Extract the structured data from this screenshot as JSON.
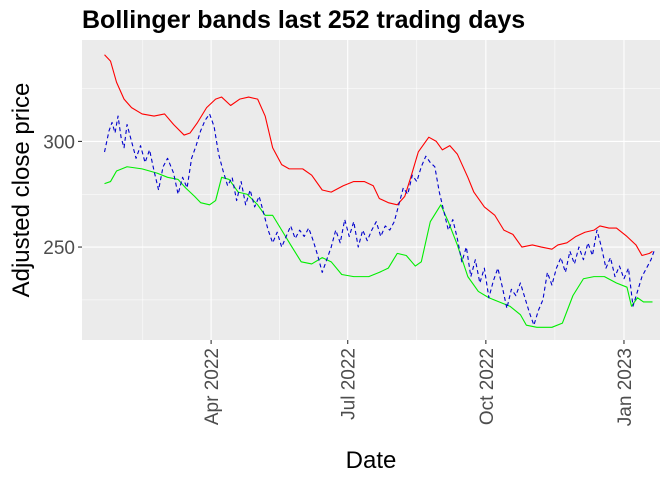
{
  "chart_data": {
    "type": "line",
    "title": "Bollinger bands last 252 trading days",
    "xlabel": "Date",
    "ylabel": "Adjusted close price",
    "x_ticks": [
      {
        "date": "2022-04-01",
        "label": "Apr 2022"
      },
      {
        "date": "2022-07-01",
        "label": "Jul 2022"
      },
      {
        "date": "2022-10-01",
        "label": "Oct 2022"
      },
      {
        "date": "2023-01-01",
        "label": "Jan 2023"
      }
    ],
    "y_ticks": [
      250,
      300
    ],
    "xlim": [
      "2022-01-05",
      "2023-01-25"
    ],
    "ylim": [
      206,
      348
    ],
    "grid": true,
    "background": "#ebebeb",
    "series": [
      {
        "color": "#ff0000",
        "dash": "solid",
        "points": [
          [
            "2022-01-20",
            341
          ],
          [
            "2022-01-24",
            338
          ],
          [
            "2022-01-28",
            328
          ],
          [
            "2022-02-02",
            320
          ],
          [
            "2022-02-07",
            316
          ],
          [
            "2022-02-14",
            313
          ],
          [
            "2022-02-22",
            312
          ],
          [
            "2022-03-01",
            313
          ],
          [
            "2022-03-07",
            308
          ],
          [
            "2022-03-14",
            303
          ],
          [
            "2022-03-18",
            304
          ],
          [
            "2022-03-23",
            309
          ],
          [
            "2022-03-29",
            316
          ],
          [
            "2022-04-04",
            320
          ],
          [
            "2022-04-08",
            321
          ],
          [
            "2022-04-14",
            317
          ],
          [
            "2022-04-20",
            320
          ],
          [
            "2022-04-26",
            321
          ],
          [
            "2022-05-02",
            320
          ],
          [
            "2022-05-07",
            312
          ],
          [
            "2022-05-12",
            297
          ],
          [
            "2022-05-18",
            289
          ],
          [
            "2022-05-23",
            287
          ],
          [
            "2022-06-01",
            287
          ],
          [
            "2022-06-07",
            284
          ],
          [
            "2022-06-14",
            277
          ],
          [
            "2022-06-20",
            276
          ],
          [
            "2022-06-28",
            279
          ],
          [
            "2022-07-05",
            281
          ],
          [
            "2022-07-12",
            281
          ],
          [
            "2022-07-18",
            279
          ],
          [
            "2022-07-22",
            273
          ],
          [
            "2022-07-28",
            271
          ],
          [
            "2022-08-03",
            270
          ],
          [
            "2022-08-08",
            274
          ],
          [
            "2022-08-12",
            283
          ],
          [
            "2022-08-17",
            295
          ],
          [
            "2022-08-24",
            302
          ],
          [
            "2022-08-29",
            300
          ],
          [
            "2022-09-02",
            296
          ],
          [
            "2022-09-07",
            298
          ],
          [
            "2022-09-12",
            294
          ],
          [
            "2022-09-19",
            283
          ],
          [
            "2022-09-23",
            276
          ],
          [
            "2022-09-30",
            269
          ],
          [
            "2022-10-07",
            265
          ],
          [
            "2022-10-13",
            258
          ],
          [
            "2022-10-19",
            256
          ],
          [
            "2022-10-25",
            250
          ],
          [
            "2022-11-01",
            251
          ],
          [
            "2022-11-07",
            250
          ],
          [
            "2022-11-14",
            249
          ],
          [
            "2022-11-18",
            251
          ],
          [
            "2022-11-24",
            252
          ],
          [
            "2022-11-30",
            255
          ],
          [
            "2022-12-06",
            257
          ],
          [
            "2022-12-12",
            258
          ],
          [
            "2022-12-16",
            260
          ],
          [
            "2022-12-22",
            259
          ],
          [
            "2022-12-27",
            259
          ],
          [
            "2023-01-03",
            255
          ],
          [
            "2023-01-09",
            251
          ],
          [
            "2023-01-13",
            246
          ],
          [
            "2023-01-18",
            247
          ],
          [
            "2023-01-20",
            248
          ]
        ]
      },
      {
        "color": "#00ee00",
        "dash": "solid",
        "points": [
          [
            "2022-01-20",
            280
          ],
          [
            "2022-01-24",
            281
          ],
          [
            "2022-01-28",
            286
          ],
          [
            "2022-02-04",
            288
          ],
          [
            "2022-02-14",
            287
          ],
          [
            "2022-02-24",
            285
          ],
          [
            "2022-03-03",
            283
          ],
          [
            "2022-03-10",
            282
          ],
          [
            "2022-03-15",
            278
          ],
          [
            "2022-03-21",
            274
          ],
          [
            "2022-03-25",
            271
          ],
          [
            "2022-03-31",
            270
          ],
          [
            "2022-04-04",
            272
          ],
          [
            "2022-04-08",
            283
          ],
          [
            "2022-04-13",
            282
          ],
          [
            "2022-04-19",
            276
          ],
          [
            "2022-04-25",
            275
          ],
          [
            "2022-05-02",
            270
          ],
          [
            "2022-05-07",
            265
          ],
          [
            "2022-05-12",
            265
          ],
          [
            "2022-05-18",
            258
          ],
          [
            "2022-05-24",
            251
          ],
          [
            "2022-05-31",
            243
          ],
          [
            "2022-06-07",
            242
          ],
          [
            "2022-06-14",
            245
          ],
          [
            "2022-06-20",
            243
          ],
          [
            "2022-06-27",
            237
          ],
          [
            "2022-07-05",
            236
          ],
          [
            "2022-07-15",
            236
          ],
          [
            "2022-07-22",
            238
          ],
          [
            "2022-07-28",
            240
          ],
          [
            "2022-08-03",
            247
          ],
          [
            "2022-08-09",
            246
          ],
          [
            "2022-08-15",
            241
          ],
          [
            "2022-08-19",
            243
          ],
          [
            "2022-08-25",
            262
          ],
          [
            "2022-09-01",
            270
          ],
          [
            "2022-09-06",
            262
          ],
          [
            "2022-09-12",
            251
          ],
          [
            "2022-09-19",
            236
          ],
          [
            "2022-09-26",
            229
          ],
          [
            "2022-10-03",
            226
          ],
          [
            "2022-10-10",
            224
          ],
          [
            "2022-10-17",
            222
          ],
          [
            "2022-10-24",
            218
          ],
          [
            "2022-10-28",
            213
          ],
          [
            "2022-11-04",
            212
          ],
          [
            "2022-11-14",
            212
          ],
          [
            "2022-11-21",
            214
          ],
          [
            "2022-11-28",
            227
          ],
          [
            "2022-12-05",
            235
          ],
          [
            "2022-12-12",
            236
          ],
          [
            "2022-12-19",
            236
          ],
          [
            "2022-12-27",
            233
          ],
          [
            "2023-01-03",
            231
          ],
          [
            "2023-01-06",
            222
          ],
          [
            "2023-01-10",
            226
          ],
          [
            "2023-01-14",
            224
          ],
          [
            "2023-01-20",
            224
          ]
        ]
      },
      {
        "color": "#0000cd",
        "dash": "dashed",
        "points": [
          [
            "2022-01-20",
            295
          ],
          [
            "2022-01-23",
            305
          ],
          [
            "2022-01-25",
            309
          ],
          [
            "2022-01-27",
            304
          ],
          [
            "2022-01-29",
            312
          ],
          [
            "2022-01-31",
            302
          ],
          [
            "2022-02-02",
            297
          ],
          [
            "2022-02-04",
            308
          ],
          [
            "2022-02-07",
            300
          ],
          [
            "2022-02-10",
            292
          ],
          [
            "2022-02-13",
            298
          ],
          [
            "2022-02-16",
            290
          ],
          [
            "2022-02-19",
            296
          ],
          [
            "2022-02-22",
            286
          ],
          [
            "2022-02-25",
            277
          ],
          [
            "2022-02-28",
            288
          ],
          [
            "2022-03-03",
            292
          ],
          [
            "2022-03-07",
            285
          ],
          [
            "2022-03-10",
            275
          ],
          [
            "2022-03-13",
            283
          ],
          [
            "2022-03-16",
            278
          ],
          [
            "2022-03-19",
            292
          ],
          [
            "2022-03-22",
            298
          ],
          [
            "2022-03-25",
            305
          ],
          [
            "2022-03-28",
            310
          ],
          [
            "2022-03-31",
            313
          ],
          [
            "2022-04-03",
            307
          ],
          [
            "2022-04-06",
            294
          ],
          [
            "2022-04-09",
            286
          ],
          [
            "2022-04-12",
            279
          ],
          [
            "2022-04-15",
            283
          ],
          [
            "2022-04-18",
            272
          ],
          [
            "2022-04-21",
            281
          ],
          [
            "2022-04-24",
            270
          ],
          [
            "2022-04-27",
            277
          ],
          [
            "2022-04-30",
            269
          ],
          [
            "2022-05-03",
            274
          ],
          [
            "2022-05-06",
            266
          ],
          [
            "2022-05-09",
            258
          ],
          [
            "2022-05-12",
            252
          ],
          [
            "2022-05-15",
            257
          ],
          [
            "2022-05-18",
            250
          ],
          [
            "2022-05-21",
            255
          ],
          [
            "2022-05-24",
            260
          ],
          [
            "2022-05-27",
            254
          ],
          [
            "2022-05-30",
            258
          ],
          [
            "2022-06-02",
            255
          ],
          [
            "2022-06-05",
            259
          ],
          [
            "2022-06-08",
            253
          ],
          [
            "2022-06-11",
            246
          ],
          [
            "2022-06-14",
            238
          ],
          [
            "2022-06-17",
            244
          ],
          [
            "2022-06-20",
            250
          ],
          [
            "2022-06-23",
            258
          ],
          [
            "2022-06-26",
            252
          ],
          [
            "2022-06-29",
            263
          ],
          [
            "2022-07-02",
            255
          ],
          [
            "2022-07-05",
            262
          ],
          [
            "2022-07-08",
            250
          ],
          [
            "2022-07-11",
            258
          ],
          [
            "2022-07-14",
            253
          ],
          [
            "2022-07-17",
            258
          ],
          [
            "2022-07-20",
            262
          ],
          [
            "2022-07-23",
            255
          ],
          [
            "2022-07-26",
            260
          ],
          [
            "2022-07-29",
            258
          ],
          [
            "2022-08-01",
            262
          ],
          [
            "2022-08-04",
            270
          ],
          [
            "2022-08-07",
            278
          ],
          [
            "2022-08-10",
            275
          ],
          [
            "2022-08-13",
            284
          ],
          [
            "2022-08-16",
            281
          ],
          [
            "2022-08-19",
            288
          ],
          [
            "2022-08-22",
            293
          ],
          [
            "2022-08-25",
            290
          ],
          [
            "2022-08-28",
            288
          ],
          [
            "2022-08-31",
            276
          ],
          [
            "2022-09-03",
            267
          ],
          [
            "2022-09-06",
            258
          ],
          [
            "2022-09-09",
            263
          ],
          [
            "2022-09-12",
            254
          ],
          [
            "2022-09-15",
            243
          ],
          [
            "2022-09-18",
            250
          ],
          [
            "2022-09-21",
            236
          ],
          [
            "2022-09-24",
            244
          ],
          [
            "2022-09-27",
            233
          ],
          [
            "2022-09-30",
            240
          ],
          [
            "2022-10-03",
            226
          ],
          [
            "2022-10-06",
            234
          ],
          [
            "2022-10-09",
            240
          ],
          [
            "2022-10-12",
            231
          ],
          [
            "2022-10-15",
            221
          ],
          [
            "2022-10-18",
            230
          ],
          [
            "2022-10-21",
            227
          ],
          [
            "2022-10-24",
            233
          ],
          [
            "2022-10-27",
            226
          ],
          [
            "2022-10-30",
            219
          ],
          [
            "2022-11-02",
            213
          ],
          [
            "2022-11-05",
            220
          ],
          [
            "2022-11-08",
            225
          ],
          [
            "2022-11-11",
            238
          ],
          [
            "2022-11-14",
            232
          ],
          [
            "2022-11-17",
            240
          ],
          [
            "2022-11-20",
            245
          ],
          [
            "2022-11-23",
            238
          ],
          [
            "2022-11-26",
            248
          ],
          [
            "2022-11-29",
            242
          ],
          [
            "2022-12-02",
            250
          ],
          [
            "2022-12-05",
            244
          ],
          [
            "2022-12-08",
            252
          ],
          [
            "2022-12-11",
            246
          ],
          [
            "2022-12-14",
            258
          ],
          [
            "2022-12-17",
            250
          ],
          [
            "2022-12-20",
            240
          ],
          [
            "2022-12-23",
            245
          ],
          [
            "2022-12-26",
            236
          ],
          [
            "2022-12-29",
            241
          ],
          [
            "2023-01-01",
            235
          ],
          [
            "2023-01-04",
            240
          ],
          [
            "2023-01-07",
            222
          ],
          [
            "2023-01-10",
            229
          ],
          [
            "2023-01-13",
            236
          ],
          [
            "2023-01-16",
            240
          ],
          [
            "2023-01-19",
            244
          ],
          [
            "2023-01-21",
            248
          ]
        ]
      }
    ]
  }
}
